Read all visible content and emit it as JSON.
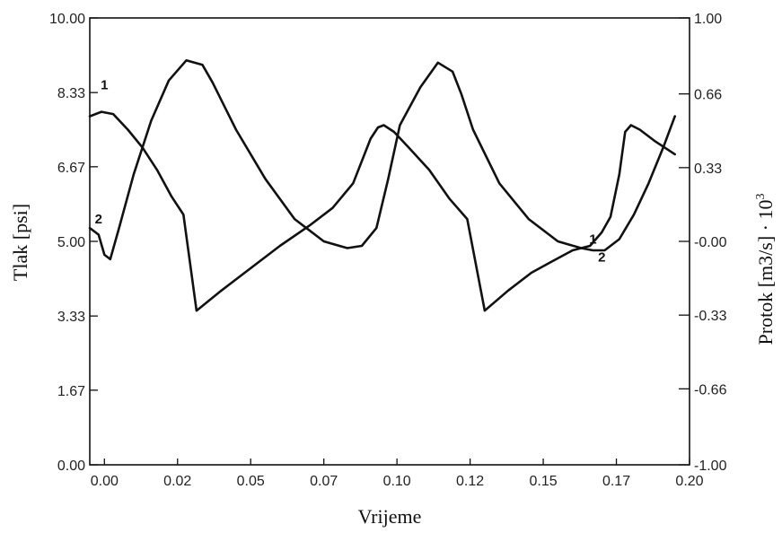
{
  "chart_data": {
    "type": "line",
    "title": "",
    "xlabel": "Vrijeme",
    "ylabel": "Tlak [psi]",
    "y2label_main": "Protok [m3/s] · 10",
    "y2label_exp": "3",
    "xlim": [
      -0.005,
      0.2
    ],
    "ylim": [
      0,
      10
    ],
    "y2lim": [
      -1,
      1
    ],
    "grid": false,
    "legend": "none",
    "x_ticks": [
      {
        "value": 0.0,
        "label": "0.00"
      },
      {
        "value": 0.025,
        "label": "0.02"
      },
      {
        "value": 0.05,
        "label": "0.05"
      },
      {
        "value": 0.075,
        "label": "0.07"
      },
      {
        "value": 0.1,
        "label": "0.10"
      },
      {
        "value": 0.125,
        "label": "0.12"
      },
      {
        "value": 0.15,
        "label": "0.15"
      },
      {
        "value": 0.175,
        "label": "0.17"
      },
      {
        "value": 0.2,
        "label": "0.20"
      }
    ],
    "y_ticks": [
      {
        "value": 0,
        "label": "0.00"
      },
      {
        "value": 1.67,
        "label": "1.67"
      },
      {
        "value": 3.33,
        "label": "3.33"
      },
      {
        "value": 5.0,
        "label": "5.00"
      },
      {
        "value": 6.67,
        "label": "6.67"
      },
      {
        "value": 8.33,
        "label": "8.33"
      },
      {
        "value": 10.0,
        "label": "10.00"
      }
    ],
    "y2_ticks": [
      {
        "value": -1.0,
        "label": "-1.00"
      },
      {
        "value": -0.66,
        "label": "-0.66"
      },
      {
        "value": -0.33,
        "label": "-0.33"
      },
      {
        "value": 0.0,
        "label": "-0.00"
      },
      {
        "value": 0.33,
        "label": "0.33"
      },
      {
        "value": 0.66,
        "label": "0.66"
      },
      {
        "value": 1.0,
        "label": "1.00"
      }
    ],
    "series": [
      {
        "name": "1",
        "x": [
          -0.005,
          -0.001,
          0.003,
          0.008,
          0.013,
          0.018,
          0.023,
          0.027,
          0.0315,
          0.04,
          0.05,
          0.06,
          0.07,
          0.078,
          0.085,
          0.091,
          0.0935,
          0.0955,
          0.099,
          0.104,
          0.111,
          0.118,
          0.124,
          0.13,
          0.138,
          0.146,
          0.153,
          0.16,
          0.166,
          0.17,
          0.173,
          0.176,
          0.178,
          0.18,
          0.183,
          0.188,
          0.195
        ],
        "y": [
          7.8,
          7.9,
          7.85,
          7.5,
          7.1,
          6.6,
          6.0,
          5.6,
          3.45,
          3.9,
          4.4,
          4.9,
          5.35,
          5.75,
          6.3,
          7.3,
          7.55,
          7.6,
          7.45,
          7.1,
          6.6,
          5.95,
          5.5,
          3.45,
          3.9,
          4.3,
          4.55,
          4.8,
          4.9,
          5.2,
          5.55,
          6.5,
          7.45,
          7.6,
          7.5,
          7.25,
          6.95
        ]
      },
      {
        "name": "2",
        "x": [
          -0.005,
          -0.002,
          0.0,
          0.002,
          0.005,
          0.01,
          0.016,
          0.022,
          0.028,
          0.0335,
          0.037,
          0.045,
          0.055,
          0.065,
          0.075,
          0.083,
          0.088,
          0.093,
          0.097,
          0.101,
          0.108,
          0.114,
          0.119,
          0.122,
          0.126,
          0.135,
          0.145,
          0.155,
          0.163,
          0.167,
          0.171,
          0.176,
          0.181,
          0.186,
          0.191,
          0.195
        ],
        "y": [
          5.3,
          5.15,
          4.7,
          4.6,
          5.3,
          6.5,
          7.7,
          8.6,
          9.05,
          8.95,
          8.55,
          7.5,
          6.4,
          5.5,
          5.0,
          4.85,
          4.9,
          5.3,
          6.4,
          7.6,
          8.45,
          9.0,
          8.8,
          8.3,
          7.5,
          6.3,
          5.5,
          5.0,
          4.85,
          4.8,
          4.8,
          5.05,
          5.6,
          6.3,
          7.1,
          7.8
        ]
      }
    ],
    "curve_labels": [
      {
        "series": "1",
        "text": "1",
        "x": 0.0,
        "y": 8.4
      },
      {
        "series": "2",
        "text": "2",
        "x": -0.002,
        "y": 5.4
      },
      {
        "series": "1",
        "text": "1",
        "x": 0.167,
        "y": 4.95
      },
      {
        "series": "2",
        "text": "2",
        "x": 0.17,
        "y": 4.55
      }
    ]
  }
}
